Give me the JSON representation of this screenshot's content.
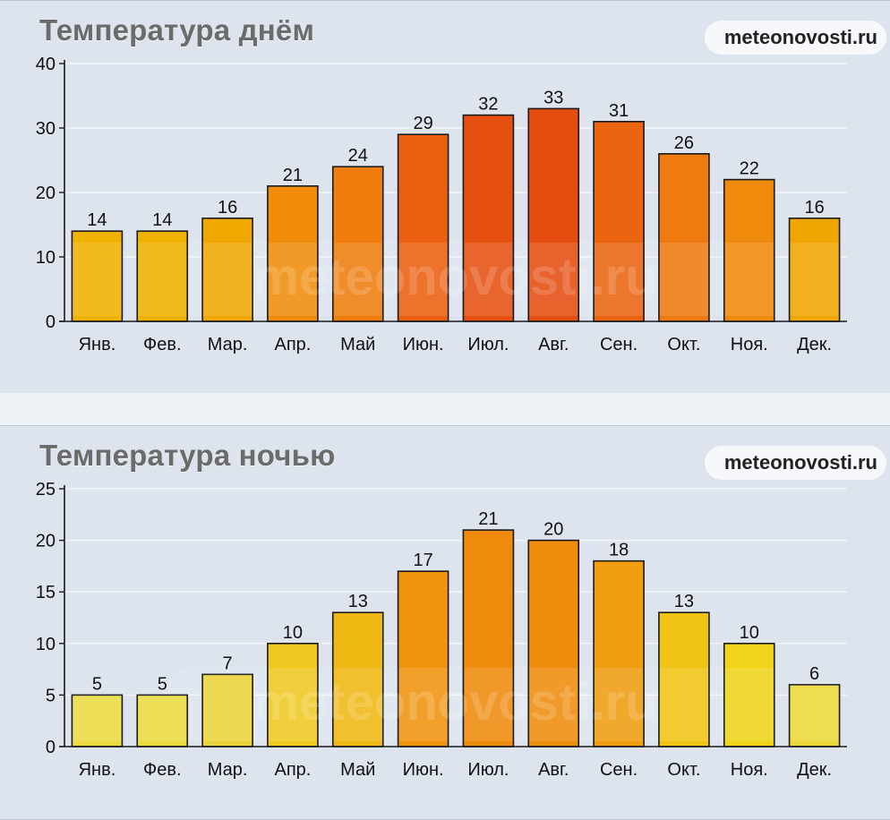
{
  "charts": {
    "day": {
      "title": "Температура днём",
      "brand_a": "meteo",
      "brand_b": "novosti.ru",
      "watermark": "meteonovosti.ru"
    },
    "night": {
      "title": "Температура ночью",
      "brand_a": "meteo",
      "brand_b": "novosti.ru",
      "watermark": "meteonovosti.ru"
    }
  },
  "chart_data": [
    {
      "type": "bar",
      "title": "Температура днём",
      "categories": [
        "Янв.",
        "Фев.",
        "Мар.",
        "Апр.",
        "Май",
        "Июн.",
        "Июл.",
        "Авг.",
        "Сен.",
        "Окт.",
        "Ноя.",
        "Дек."
      ],
      "values": [
        14,
        14,
        16,
        21,
        24,
        29,
        32,
        33,
        31,
        26,
        22,
        16
      ],
      "ylim": [
        0,
        40
      ],
      "yticks": [
        0,
        10,
        20,
        30,
        40
      ],
      "grid": true,
      "colors": [
        "#f0b200",
        "#f0b200",
        "#f0a800",
        "#f08c0a",
        "#f07d0e",
        "#eb6010",
        "#e55010",
        "#e54d10",
        "#eb6410",
        "#ee7a10",
        "#f08a0c",
        "#f0a600"
      ]
    },
    {
      "type": "bar",
      "title": "Температура ночью",
      "categories": [
        "Янв.",
        "Фев.",
        "Мар.",
        "Апр.",
        "Май",
        "Июн.",
        "Июл.",
        "Авг.",
        "Сен.",
        "Окт.",
        "Ноя.",
        "Дек."
      ],
      "values": [
        5,
        5,
        7,
        10,
        13,
        17,
        21,
        20,
        18,
        13,
        10,
        6
      ],
      "ylim": [
        0,
        25
      ],
      "yticks": [
        0,
        5,
        10,
        15,
        20,
        25
      ],
      "grid": true,
      "colors": [
        "#ebdb40",
        "#ebdb40",
        "#ecd23a",
        "#f0c820",
        "#f0b812",
        "#f0940e",
        "#ee8a0c",
        "#ee8c0c",
        "#f09e10",
        "#f0c414",
        "#f0d41a",
        "#ecd83a"
      ]
    }
  ]
}
